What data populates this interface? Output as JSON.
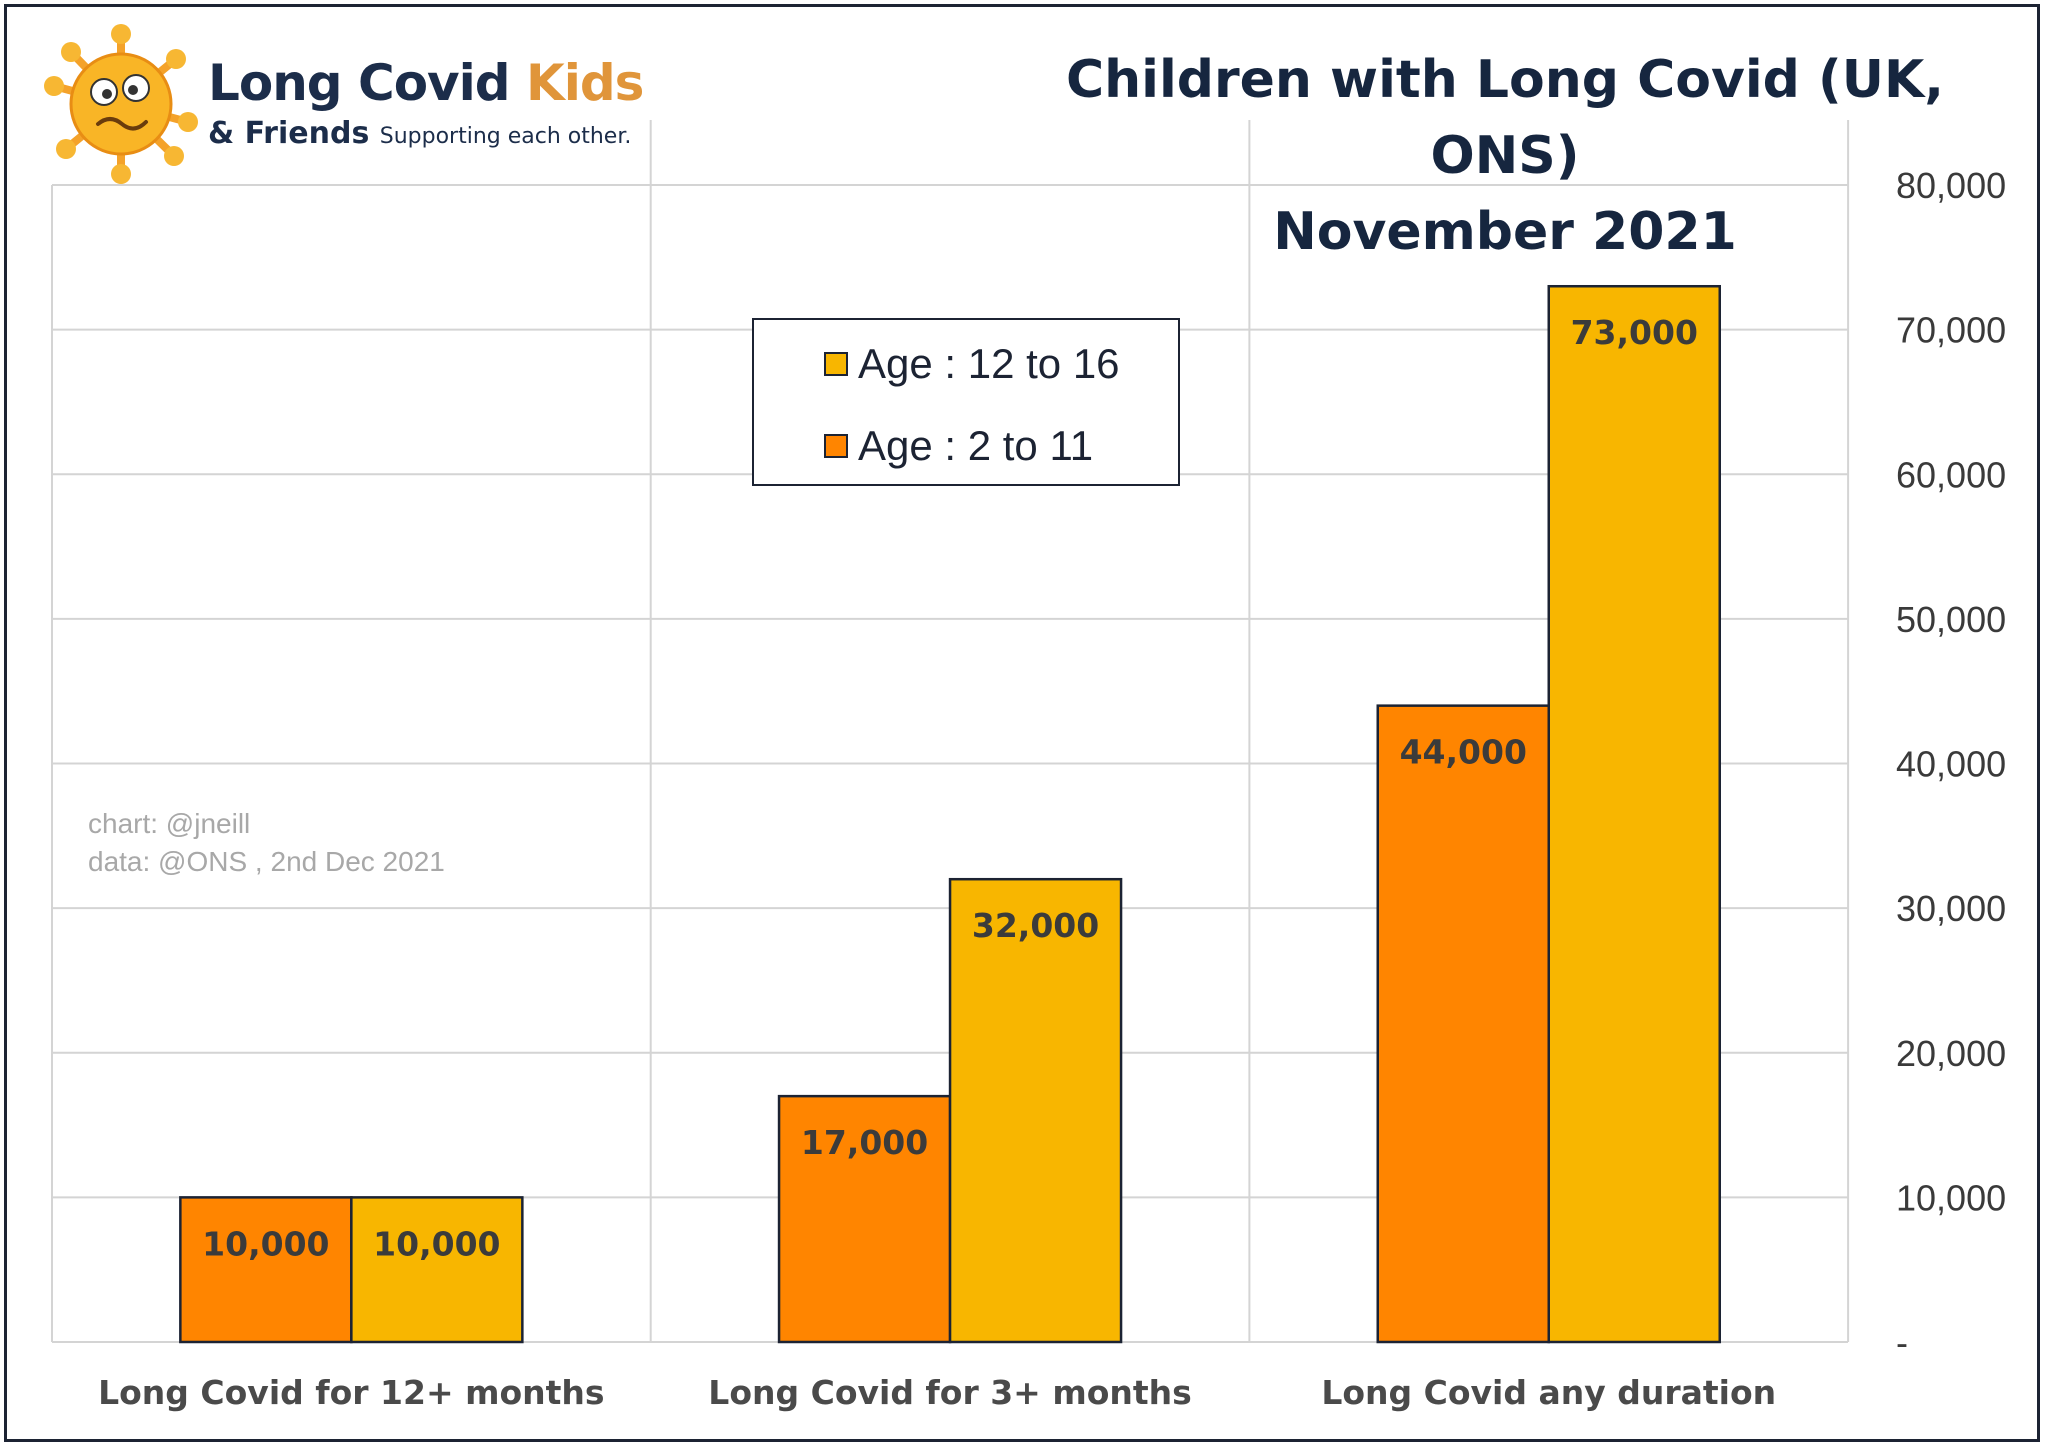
{
  "logo": {
    "name_part1": "Long Covid ",
    "name_part2": "Kids",
    "line2": "& Friends",
    "tagline": "Supporting each other."
  },
  "title_line1": "Children with Long Covid (UK, ONS)",
  "title_line2": "November 2021",
  "credits": [
    "chart: @jneill",
    "data: @ONS , 2nd Dec 2021"
  ],
  "colors": {
    "age_2_11": "#ff8500",
    "age_12_16": "#f8b600",
    "gridline": "#d4d4d4",
    "text_dark": "#1c2333",
    "text_axis": "#3a3a3a"
  },
  "chart_data": {
    "type": "bar",
    "title": "Children with Long Covid (UK, ONS) November 2021",
    "categories": [
      "Long Covid for 12+ months",
      "Long Covid for 3+ months",
      "Long Covid any duration"
    ],
    "series": [
      {
        "name": "Age : 2 to 11",
        "values": [
          10000,
          17000,
          44000
        ],
        "labels": [
          "10,000",
          "17,000",
          "44,000"
        ]
      },
      {
        "name": "Age : 12 to 16",
        "values": [
          10000,
          32000,
          73000
        ],
        "labels": [
          "10,000",
          "32,000",
          "73,000"
        ]
      }
    ],
    "legend_order": [
      "Age : 12 to 16",
      "Age : 2 to 11"
    ],
    "ylim": [
      0,
      80000
    ],
    "yticks": [
      0,
      10000,
      20000,
      30000,
      40000,
      50000,
      60000,
      70000,
      80000
    ],
    "ytick_labels": [
      "-",
      "10,000",
      "20,000",
      "30,000",
      "40,000",
      "50,000",
      "60,000",
      "70,000",
      "80,000"
    ],
    "y_axis_side": "right",
    "grid": true,
    "legend_position": "top-center"
  }
}
